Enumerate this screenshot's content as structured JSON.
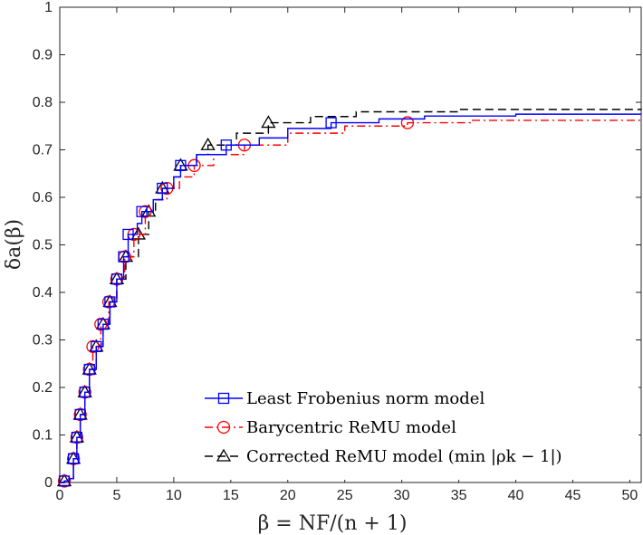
{
  "chart_data": {
    "type": "line",
    "xlabel": "β = NF/(n + 1)",
    "ylabel": "δa(β)",
    "xlim": [
      0,
      51
    ],
    "ylim": [
      0,
      1
    ],
    "x_ticks": [
      "0",
      "5",
      "10",
      "15",
      "20",
      "25",
      "30",
      "35",
      "40",
      "45",
      "50"
    ],
    "y_ticks": [
      "0",
      "0.1",
      "0.2",
      "0.3",
      "0.4",
      "0.5",
      "0.6",
      "0.7",
      "0.8",
      "0.9",
      "1"
    ],
    "grid": false,
    "legend_position": "bottom-right",
    "series": [
      {
        "name": "Least Frobenius norm model",
        "color": "#0000ff",
        "dash": "solid",
        "marker": "square",
        "points": [
          [
            0,
            0
          ],
          [
            0.4,
            0.003
          ],
          [
            0.8,
            0.008
          ],
          [
            1.2,
            0.05
          ],
          [
            1.5,
            0.095
          ],
          [
            1.8,
            0.143
          ],
          [
            2.2,
            0.19
          ],
          [
            2.6,
            0.238
          ],
          [
            3.2,
            0.286
          ],
          [
            3.8,
            0.333
          ],
          [
            4.4,
            0.38
          ],
          [
            5.0,
            0.428
          ],
          [
            5.6,
            0.475
          ],
          [
            6.0,
            0.522
          ],
          [
            6.8,
            0.545
          ],
          [
            7.2,
            0.57
          ],
          [
            8.2,
            0.595
          ],
          [
            9.0,
            0.619
          ],
          [
            10.0,
            0.643
          ],
          [
            10.6,
            0.667
          ],
          [
            12.0,
            0.69
          ],
          [
            14.6,
            0.71
          ],
          [
            17.5,
            0.725
          ],
          [
            20,
            0.745
          ],
          [
            23.8,
            0.757
          ],
          [
            28,
            0.765
          ],
          [
            32,
            0.771
          ],
          [
            40,
            0.775
          ],
          [
            51,
            0.775
          ]
        ],
        "markers": [
          [
            0.4,
            0.003
          ],
          [
            1.2,
            0.05
          ],
          [
            1.5,
            0.095
          ],
          [
            1.8,
            0.143
          ],
          [
            2.2,
            0.19
          ],
          [
            2.6,
            0.238
          ],
          [
            3.2,
            0.286
          ],
          [
            3.8,
            0.333
          ],
          [
            4.4,
            0.38
          ],
          [
            5.0,
            0.428
          ],
          [
            5.6,
            0.475
          ],
          [
            6.0,
            0.522
          ],
          [
            7.2,
            0.57
          ],
          [
            9.0,
            0.619
          ],
          [
            10.6,
            0.667
          ],
          [
            14.6,
            0.71
          ],
          [
            23.8,
            0.757
          ]
        ]
      },
      {
        "name": "Barycentric ReMU model",
        "color": "#ff0000",
        "dash": "dashdot",
        "marker": "circle",
        "points": [
          [
            0,
            0
          ],
          [
            0.4,
            0.003
          ],
          [
            0.8,
            0.008
          ],
          [
            1.2,
            0.05
          ],
          [
            1.5,
            0.095
          ],
          [
            1.8,
            0.143
          ],
          [
            2.2,
            0.19
          ],
          [
            2.6,
            0.238
          ],
          [
            2.9,
            0.286
          ],
          [
            3.6,
            0.333
          ],
          [
            4.3,
            0.38
          ],
          [
            5.0,
            0.428
          ],
          [
            5.7,
            0.475
          ],
          [
            6.5,
            0.522
          ],
          [
            7.5,
            0.57
          ],
          [
            8.2,
            0.595
          ],
          [
            9.4,
            0.619
          ],
          [
            10.5,
            0.643
          ],
          [
            11.8,
            0.667
          ],
          [
            13.5,
            0.69
          ],
          [
            16.2,
            0.71
          ],
          [
            20,
            0.735
          ],
          [
            25,
            0.75
          ],
          [
            30.5,
            0.757
          ],
          [
            36,
            0.762
          ],
          [
            51,
            0.765
          ]
        ],
        "markers": [
          [
            0.4,
            0.003
          ],
          [
            1.2,
            0.05
          ],
          [
            1.5,
            0.095
          ],
          [
            1.8,
            0.143
          ],
          [
            2.2,
            0.19
          ],
          [
            2.6,
            0.238
          ],
          [
            2.9,
            0.286
          ],
          [
            3.6,
            0.333
          ],
          [
            4.3,
            0.38
          ],
          [
            5.0,
            0.428
          ],
          [
            5.7,
            0.475
          ],
          [
            6.5,
            0.522
          ],
          [
            7.5,
            0.57
          ],
          [
            9.4,
            0.619
          ],
          [
            11.8,
            0.667
          ],
          [
            16.2,
            0.71
          ],
          [
            30.5,
            0.757
          ]
        ]
      },
      {
        "name": "Corrected ReMU model (min |ρk − 1|)",
        "color": "#000000",
        "dash": "dashed",
        "marker": "triangle",
        "points": [
          [
            0,
            0
          ],
          [
            0.4,
            0.003
          ],
          [
            0.8,
            0.008
          ],
          [
            1.2,
            0.05
          ],
          [
            1.5,
            0.095
          ],
          [
            1.8,
            0.143
          ],
          [
            2.2,
            0.19
          ],
          [
            2.6,
            0.238
          ],
          [
            3.2,
            0.286
          ],
          [
            3.8,
            0.333
          ],
          [
            4.4,
            0.38
          ],
          [
            5.0,
            0.428
          ],
          [
            5.8,
            0.475
          ],
          [
            6.9,
            0.522
          ],
          [
            7.8,
            0.57
          ],
          [
            8.4,
            0.595
          ],
          [
            9.0,
            0.619
          ],
          [
            10.0,
            0.643
          ],
          [
            10.6,
            0.667
          ],
          [
            12.0,
            0.69
          ],
          [
            13.0,
            0.71
          ],
          [
            15.5,
            0.735
          ],
          [
            18.3,
            0.757
          ],
          [
            22,
            0.77
          ],
          [
            26,
            0.78
          ],
          [
            35,
            0.785
          ],
          [
            51,
            0.787
          ]
        ],
        "markers": [
          [
            0.4,
            0.003
          ],
          [
            1.2,
            0.05
          ],
          [
            1.5,
            0.095
          ],
          [
            1.8,
            0.143
          ],
          [
            2.2,
            0.19
          ],
          [
            2.6,
            0.238
          ],
          [
            3.2,
            0.286
          ],
          [
            3.8,
            0.333
          ],
          [
            4.4,
            0.38
          ],
          [
            5.0,
            0.428
          ],
          [
            5.8,
            0.475
          ],
          [
            6.9,
            0.522
          ],
          [
            7.8,
            0.57
          ],
          [
            9.0,
            0.619
          ],
          [
            10.6,
            0.667
          ],
          [
            13.0,
            0.71
          ],
          [
            18.3,
            0.757
          ]
        ]
      }
    ]
  }
}
